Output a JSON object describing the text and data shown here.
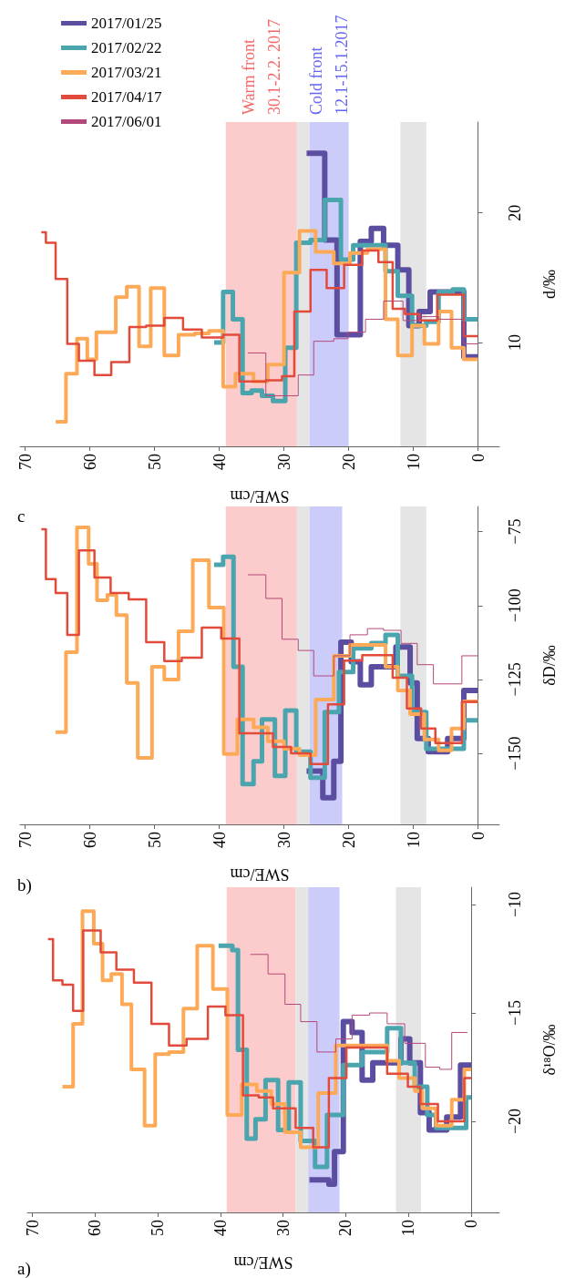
{
  "chart_data": [
    {
      "type": "line",
      "title": "a)",
      "xlabel": "SWE/cm",
      "ylabel": "δ¹⁸O/‰",
      "xlim": [
        70.8,
        -4.5
      ],
      "xticks": [
        70,
        60,
        50,
        40,
        30,
        20,
        10,
        0
      ],
      "ylim": [
        -24.2,
        -9.2
      ],
      "yticks": [
        -20,
        -15,
        -10
      ],
      "bands": [
        {
          "axis": "x",
          "from": 39,
          "to": 28,
          "color": "#fccccc"
        },
        {
          "axis": "x",
          "from": 28,
          "to": 26,
          "color": "#e5e5e5"
        },
        {
          "axis": "x",
          "from": 26,
          "to": 21,
          "color": "#ccccfb"
        },
        {
          "axis": "x",
          "from": 12,
          "to": 8,
          "color": "#e5e5e5"
        }
      ],
      "series": [
        {
          "color": "#5b4ea0",
          "values": [
            -22.7,
            -22.7,
            -22.9,
            -22.9,
            -21.4,
            -21.4,
            -15.4,
            -15.4,
            -15.9,
            -15.9,
            -18.1,
            -18.1,
            -17.3,
            -17.3,
            -16.2,
            -16.2,
            -17.3,
            -17.3,
            -19.6,
            -19.6,
            -20.4,
            -20.4,
            -19.8,
            -19.8,
            -17.4,
            -17.4
          ],
          "x": [
            25.8,
            22.7,
            22.7,
            21.8,
            21.8,
            20.4,
            20.4,
            19.0,
            19.0,
            17.4,
            17.4,
            15.7,
            15.7,
            11.2,
            11.2,
            9.8,
            9.8,
            8.1,
            8.1,
            6.7,
            6.7,
            3.9,
            3.9,
            1.7,
            1.7,
            0
          ]
        },
        {
          "color": "#4aa5ae",
          "values": [
            -11.9,
            -11.9,
            -12.1,
            -12.1,
            -16.7,
            -16.7,
            -20.8,
            -20.8,
            -19.9,
            -19.9,
            -18.1,
            -18.1,
            -20.4,
            -20.4,
            -18.2,
            -18.2,
            -20.9,
            -20.9,
            -22.1,
            -22.1,
            -19.7,
            -19.7,
            -17.4,
            -17.4,
            -16.8,
            -16.8,
            -15.7,
            -15.7,
            -17.3,
            -17.3,
            -18.4,
            -18.4,
            -19.7,
            -19.7,
            -20.3,
            -20.3,
            -18.9,
            -18.9
          ],
          "x": [
            40.3,
            38.1,
            38.1,
            37.2,
            37.2,
            35.8,
            35.8,
            34.4,
            34.4,
            32.8,
            32.8,
            30.8,
            30.8,
            29.1,
            29.1,
            27.2,
            27.2,
            24.9,
            24.9,
            23.0,
            23.0,
            20.4,
            20.4,
            17.4,
            17.4,
            13.4,
            13.4,
            11.2,
            11.2,
            9.0,
            9.0,
            7.0,
            7.0,
            5.6,
            5.6,
            0.8,
            0.8,
            0
          ]
        },
        {
          "color": "#fdaa58",
          "values": [
            -18.4,
            -18.4,
            -15.5,
            -15.5,
            -10.3,
            -10.3,
            -11.8,
            -11.8,
            -13.5,
            -13.5,
            -13.2,
            -13.2,
            -14.6,
            -14.6,
            -17.6,
            -17.6,
            -20.2,
            -20.2,
            -16.9,
            -16.9,
            -16.8,
            -16.8,
            -14.8,
            -14.8,
            -11.9,
            -11.9,
            -13.9,
            -13.9,
            -19.7,
            -19.7,
            -18.3,
            -18.3,
            -18.6,
            -18.6,
            -19.2,
            -19.2,
            -20.5,
            -20.5,
            -21.2,
            -21.2,
            -18.7,
            -18.7,
            -16.5,
            -16.5,
            -17.2,
            -17.2,
            -18.0,
            -18.0,
            -18.6,
            -18.6,
            -19.4,
            -19.4,
            -20.2,
            -20.2,
            -19.0,
            -19.0,
            -17.6,
            -17.6
          ],
          "x": [
            65.2,
            63.5,
            63.5,
            62.0,
            62.0,
            60.2,
            60.2,
            58.8,
            58.8,
            57.4,
            57.4,
            55.7,
            55.7,
            54.2,
            54.2,
            52.1,
            52.1,
            50.4,
            50.4,
            48.2,
            48.2,
            45.9,
            45.9,
            43.7,
            43.7,
            41.2,
            41.2,
            38.9,
            38.9,
            36.6,
            36.6,
            34.2,
            34.2,
            31.9,
            31.9,
            29.7,
            29.7,
            27.2,
            27.2,
            24.4,
            24.4,
            21.6,
            21.6,
            13.4,
            13.4,
            11.5,
            11.5,
            9.0,
            9.0,
            7.8,
            7.8,
            5.6,
            5.6,
            3.1,
            3.1,
            1.1,
            1.1,
            0
          ]
        },
        {
          "color": "#e24a3b",
          "values": [
            -11.6,
            -11.6,
            -13.5,
            -13.5,
            -13.7,
            -13.7,
            -14.9,
            -14.9,
            -11.2,
            -11.2,
            -12.2,
            -12.2,
            -13.0,
            -13.0,
            -13.6,
            -13.6,
            -15.5,
            -15.5,
            -16.5,
            -16.5,
            -16.2,
            -16.2,
            -14.7,
            -14.7,
            -15.1,
            -15.1,
            -18.8,
            -18.8,
            -18.9,
            -18.9,
            -19.4,
            -19.4,
            -20.3,
            -20.3,
            -21.2,
            -21.2,
            -18.0,
            -18.0,
            -16.6,
            -16.6,
            -17.8,
            -17.8,
            -18.4,
            -18.4,
            -19.2,
            -19.2,
            -20.0,
            -20.0,
            -18.0,
            -18.0
          ],
          "x": [
            67.5,
            66.7,
            66.7,
            65.2,
            65.2,
            63.5,
            63.5,
            61.9,
            61.9,
            59.1,
            59.1,
            56.6,
            56.6,
            53.8,
            53.8,
            51.0,
            51.0,
            48.2,
            48.2,
            45.4,
            45.4,
            42.0,
            42.0,
            39.2,
            39.2,
            36.4,
            36.4,
            33.9,
            33.9,
            31.6,
            31.6,
            28.0,
            28.0,
            25.2,
            25.2,
            22.7,
            22.7,
            19.9,
            19.9,
            13.4,
            13.4,
            10.1,
            10.1,
            8.1,
            8.1,
            5.3,
            5.3,
            1.1,
            1.1,
            0
          ]
        },
        {
          "color": "#b5487a",
          "values": [
            -12.3,
            -12.3,
            -13.2,
            -13.2,
            -14.6,
            -14.6,
            -15.4,
            -15.4,
            -16.8,
            -16.8,
            -16.2,
            -16.2,
            -15.1,
            -15.1,
            -15.0,
            -15.0,
            -15.5,
            -15.5,
            -16.4,
            -16.4,
            -17.5,
            -17.5,
            -17.6,
            -17.6,
            -15.9,
            -15.9
          ],
          "x": [
            35.2,
            32.4,
            32.4,
            29.7,
            29.7,
            27.2,
            27.2,
            24.6,
            24.6,
            21.6,
            21.6,
            19.0,
            19.0,
            16.2,
            16.2,
            13.4,
            13.4,
            10.6,
            10.6,
            7.3,
            7.3,
            5.0,
            5.0,
            3.1,
            3.1,
            0.6
          ]
        }
      ]
    },
    {
      "type": "line",
      "title": "b)",
      "xlabel": "SWE/cm",
      "ylabel": "δD/‰",
      "xlim": [
        70.8,
        -3.3
      ],
      "xticks": [
        70,
        60,
        50,
        40,
        30,
        20,
        10,
        0
      ],
      "ylim": [
        -174,
        -66.5
      ],
      "yticks": [
        -150,
        -125,
        -100,
        -75
      ],
      "bands": [
        {
          "axis": "x",
          "from": 39,
          "to": 28,
          "color": "#fccccc"
        },
        {
          "axis": "x",
          "from": 28,
          "to": 26,
          "color": "#e5e5e5"
        },
        {
          "axis": "x",
          "from": 26,
          "to": 21,
          "color": "#ccccfb"
        },
        {
          "axis": "x",
          "from": 12,
          "to": 8,
          "color": "#e5e5e5"
        }
      ],
      "series": [
        {
          "color": "#5b4ea0",
          "values": [
            -156.0,
            -156.0,
            -165.0,
            -165.0,
            -152.7,
            -152.7,
            -112.4,
            -112.4,
            -119.0,
            -119.0,
            -126.8,
            -126.8,
            -120.7,
            -120.7,
            -114.0,
            -114.0,
            -126.2,
            -126.2,
            -145.0,
            -145.0,
            -149.4,
            -149.4,
            -145.0,
            -145.0,
            -128.7,
            -128.7
          ],
          "x": [
            26.5,
            24.0,
            24.0,
            22.3,
            22.3,
            21.2,
            21.2,
            19.6,
            19.6,
            18.2,
            18.2,
            16.5,
            16.5,
            12.7,
            12.7,
            10.5,
            10.5,
            9.4,
            9.4,
            7.7,
            7.7,
            4.7,
            4.7,
            2.2,
            2.2,
            0
          ]
        },
        {
          "color": "#4aa5ae",
          "values": [
            -86.2,
            -86.2,
            -83.5,
            -83.5,
            -120.7,
            -120.7,
            -160.4,
            -160.4,
            -152.7,
            -152.7,
            -138.5,
            -138.5,
            -157.6,
            -157.6,
            -135.5,
            -135.5,
            -149.4,
            -149.4,
            -158.2,
            -158.2,
            -136.0,
            -136.0,
            -122.5,
            -122.5,
            -114.5,
            -114.5,
            -112.7,
            -112.7,
            -109.9,
            -109.9,
            -123.8,
            -123.8,
            -136.0,
            -136.0,
            -148.4,
            -148.4,
            -138.8,
            -138.8
          ],
          "x": [
            40.8,
            39.4,
            39.4,
            37.8,
            37.8,
            36.4,
            36.4,
            34.7,
            34.7,
            33.4,
            33.4,
            31.4,
            31.4,
            29.8,
            29.8,
            28.1,
            28.1,
            25.9,
            25.9,
            23.7,
            23.7,
            21.5,
            21.5,
            19.3,
            19.3,
            16.5,
            16.5,
            14.3,
            14.3,
            12.4,
            12.4,
            10.2,
            10.2,
            8.0,
            8.0,
            2.2,
            2.2,
            0
          ]
        },
        {
          "color": "#fdaa58",
          "values": [
            -142.8,
            -142.8,
            -115.8,
            -115.8,
            -73.6,
            -73.6,
            -85.9,
            -85.9,
            -98.2,
            -98.2,
            -96.4,
            -96.4,
            -103.2,
            -103.2,
            -126.2,
            -126.2,
            -151.5,
            -151.5,
            -120.7,
            -120.7,
            -125.0,
            -125.0,
            -108.7,
            -108.7,
            -84.7,
            -84.7,
            -100.7,
            -100.7,
            -150.2,
            -150.2,
            -138.5,
            -138.5,
            -141.2,
            -141.2,
            -145.9,
            -145.9,
            -148.4,
            -148.4,
            -150.6,
            -150.6,
            -131.8,
            -131.8,
            -117.0,
            -117.0,
            -113.3,
            -113.3,
            -120.7,
            -120.7,
            -128.7,
            -128.7,
            -136.7,
            -136.7,
            -145.3,
            -145.3,
            -149.0,
            -149.0,
            -141.6,
            -141.6,
            -132.4,
            -132.4
          ],
          "x": [
            65.3,
            63.7,
            63.7,
            62.0,
            62.0,
            60.2,
            60.2,
            58.9,
            58.9,
            57.3,
            57.3,
            55.9,
            55.9,
            54.3,
            54.3,
            52.6,
            52.6,
            50.4,
            50.4,
            48.5,
            48.5,
            46.3,
            46.3,
            44.1,
            44.1,
            41.6,
            41.6,
            39.3,
            39.3,
            37.2,
            37.2,
            34.7,
            34.7,
            32.5,
            32.5,
            30.0,
            30.0,
            27.6,
            27.6,
            25.1,
            25.1,
            22.3,
            22.3,
            19.8,
            19.8,
            14.3,
            14.3,
            12.4,
            12.4,
            10.5,
            10.5,
            8.3,
            8.3,
            6.1,
            6.1,
            4.1,
            4.1,
            2.2,
            2.2,
            0
          ]
        },
        {
          "color": "#e24a3b",
          "values": [
            -74.2,
            -74.2,
            -91.1,
            -91.1,
            -95.8,
            -95.8,
            -109.9,
            -109.9,
            -81.4,
            -81.4,
            -90.5,
            -90.5,
            -95.8,
            -95.8,
            -97.9,
            -97.9,
            -112.4,
            -112.4,
            -118.8,
            -118.8,
            -117.6,
            -117.6,
            -107.5,
            -107.5,
            -111.2,
            -111.2,
            -143.2,
            -143.2,
            -147.8,
            -147.8,
            -150.0,
            -150.0,
            -153.6,
            -153.6,
            -133.4,
            -133.4,
            -118.6,
            -118.6,
            -116.8,
            -116.8,
            -124.4,
            -124.4,
            -134.8,
            -134.8,
            -141.6,
            -141.6,
            -146.5,
            -146.5,
            -132.6,
            -132.6
          ],
          "x": [
            67.5,
            66.8,
            66.8,
            65.3,
            65.3,
            63.5,
            63.5,
            61.7,
            61.7,
            59.3,
            59.3,
            56.8,
            56.8,
            54.0,
            54.0,
            51.3,
            51.3,
            48.5,
            48.5,
            45.8,
            45.8,
            42.7,
            42.7,
            39.7,
            39.7,
            36.9,
            36.9,
            31.7,
            31.7,
            28.9,
            28.9,
            25.9,
            25.9,
            23.2,
            23.2,
            20.7,
            20.7,
            17.9,
            17.9,
            13.2,
            13.2,
            11.0,
            11.0,
            8.8,
            8.8,
            6.6,
            6.6,
            2.5,
            2.5,
            0
          ]
        },
        {
          "color": "#b5487a",
          "values": [
            -89.6,
            -89.6,
            -97.6,
            -97.6,
            -111.4,
            -111.4,
            -115.2,
            -115.2,
            -123.8,
            -123.8,
            -117.0,
            -117.0,
            -109.9,
            -109.9,
            -107.8,
            -107.8,
            -108.4,
            -108.4,
            -112.8,
            -112.8,
            -120.0,
            -120.0,
            -126.5,
            -126.5,
            -117.0,
            -117.0
          ],
          "x": [
            35.6,
            32.8,
            32.8,
            30.3,
            30.3,
            27.8,
            27.8,
            25.4,
            25.4,
            22.3,
            22.3,
            19.8,
            19.8,
            17.1,
            17.1,
            14.6,
            14.6,
            11.9,
            11.9,
            9.4,
            9.4,
            6.9,
            6.9,
            2.5,
            2.5,
            0
          ]
        }
      ]
    },
    {
      "type": "line",
      "title": "c",
      "xlabel": "SWE/cm",
      "ylabel": "d/‰",
      "xlim": [
        70.8,
        -3.3
      ],
      "xticks": [
        70,
        60,
        50,
        40,
        30,
        20,
        10,
        0
      ],
      "ylim": [
        2,
        27
      ],
      "yticks": [
        10,
        20
      ],
      "legend": "top left",
      "bands": [
        {
          "axis": "x",
          "from": 39,
          "to": 28,
          "color": "#fccccc",
          "label": "Warm front\n30.1-2.2. 2017"
        },
        {
          "axis": "x",
          "from": 28,
          "to": 26,
          "color": "#e5e5e5"
        },
        {
          "axis": "x",
          "from": 26,
          "to": 20,
          "color": "#ccccfb",
          "label": "Cold front\n12.1-15.1.2017"
        },
        {
          "axis": "x",
          "from": 12,
          "to": 8,
          "color": "#e5e5e5"
        }
      ],
      "series": [
        {
          "name": "2017/01/25",
          "color": "#5b4ea0",
          "values": [
            24.6,
            24.6,
            17.9,
            17.9,
            10.6,
            10.6,
            17.8,
            17.8,
            18.8,
            18.8,
            17.5,
            17.5,
            15.6,
            15.6,
            11.3,
            11.3,
            12.4,
            12.4,
            13.9,
            13.9,
            8.9,
            8.9
          ],
          "x": [
            26.5,
            23.7,
            23.7,
            21.8,
            21.8,
            18.2,
            18.2,
            16.5,
            16.5,
            14.6,
            14.6,
            12.4,
            12.4,
            10.7,
            10.7,
            9.1,
            9.1,
            7.4,
            7.4,
            2.2,
            2.2,
            0
          ]
        },
        {
          "name": "2017/02/22",
          "color": "#4aa5ae",
          "values": [
            10.0,
            10.0,
            13.9,
            13.9,
            11.8,
            11.8,
            6.1,
            6.1,
            6.3,
            6.3,
            5.9,
            5.9,
            5.5,
            5.5,
            9.6,
            9.6,
            17.7,
            17.7,
            17.9,
            17.9,
            21.0,
            21.0,
            16.4,
            16.4,
            17.5,
            17.5,
            15.5,
            15.5,
            13.6,
            13.6,
            11.3,
            11.3,
            11.6,
            11.6,
            13.9,
            13.9,
            14.1,
            14.1,
            11.8,
            11.8
          ],
          "x": [
            40.8,
            39.4,
            39.4,
            37.9,
            37.9,
            36.4,
            36.4,
            35.0,
            35.0,
            33.4,
            33.4,
            31.7,
            31.7,
            29.8,
            29.8,
            28.1,
            28.1,
            25.9,
            25.9,
            23.7,
            23.7,
            21.2,
            21.2,
            19.3,
            19.3,
            14.3,
            14.3,
            12.4,
            12.4,
            10.2,
            10.2,
            8.0,
            8.0,
            6.1,
            6.1,
            3.9,
            3.9,
            2.2,
            2.2,
            0
          ]
        },
        {
          "name": "2017/03/21",
          "color": "#fdaa58",
          "values": [
            3.9,
            3.9,
            7.6,
            7.6,
            10.3,
            10.3,
            8.7,
            8.7,
            10.8,
            10.8,
            13.5,
            13.5,
            14.3,
            14.3,
            9.7,
            9.7,
            14.2,
            14.2,
            9.0,
            9.0,
            10.6,
            10.6,
            10.7,
            10.7,
            10.9,
            10.9,
            6.6,
            6.6,
            7.6,
            7.6,
            7.0,
            7.0,
            8.3,
            8.3,
            15.4,
            15.4,
            18.6,
            18.6,
            17.0,
            17.0,
            16.1,
            16.1,
            16.9,
            16.9,
            17.2,
            17.2,
            11.8,
            11.8,
            9.0,
            9.0,
            11.3,
            11.3,
            9.9,
            9.9,
            12.4,
            12.4,
            9.6,
            9.6,
            8.7,
            8.7
          ],
          "x": [
            65.3,
            63.7,
            63.7,
            62.0,
            62.0,
            60.4,
            60.4,
            59.0,
            59.0,
            56.0,
            56.0,
            54.3,
            54.3,
            52.4,
            52.4,
            50.6,
            50.6,
            48.5,
            48.5,
            46.3,
            46.3,
            43.8,
            43.8,
            41.6,
            41.6,
            39.4,
            39.4,
            37.5,
            37.5,
            34.7,
            34.7,
            32.5,
            32.5,
            30.0,
            30.0,
            27.6,
            27.6,
            25.1,
            25.1,
            22.3,
            22.3,
            19.8,
            19.8,
            17.1,
            17.1,
            14.3,
            14.3,
            12.4,
            12.4,
            10.2,
            10.2,
            8.3,
            8.3,
            6.1,
            6.1,
            4.1,
            4.1,
            2.2,
            2.2,
            0
          ]
        },
        {
          "name": "2017/04/17",
          "color": "#e24a3b",
          "values": [
            18.5,
            18.5,
            17.7,
            17.7,
            14.9,
            14.9,
            9.9,
            9.9,
            8.6,
            8.6,
            7.5,
            7.5,
            8.5,
            8.5,
            11.2,
            11.2,
            11.3,
            11.3,
            11.9,
            11.9,
            11.0,
            11.0,
            10.4,
            10.4,
            10.6,
            10.6,
            7.0,
            7.0,
            7.1,
            7.1,
            7.4,
            7.4,
            12.4,
            12.4,
            15.6,
            15.6,
            14.2,
            14.2,
            16.0,
            16.0,
            17.1,
            17.1,
            16.2,
            16.2,
            12.6,
            12.6,
            12.2,
            12.2,
            11.7,
            11.7,
            13.7,
            13.7,
            10.5,
            10.5
          ],
          "x": [
            67.5,
            66.8,
            66.8,
            65.3,
            65.3,
            63.5,
            63.5,
            61.7,
            61.7,
            59.3,
            59.3,
            56.7,
            56.7,
            53.9,
            53.9,
            51.3,
            51.3,
            48.5,
            48.5,
            45.6,
            45.6,
            42.7,
            42.7,
            39.4,
            39.4,
            36.9,
            36.9,
            32.8,
            32.8,
            30.3,
            30.3,
            28.4,
            28.4,
            25.9,
            25.9,
            23.4,
            23.4,
            20.7,
            20.7,
            17.9,
            17.9,
            15.4,
            15.4,
            13.2,
            13.2,
            11.3,
            11.3,
            9.1,
            9.1,
            6.3,
            6.3,
            2.2,
            2.2,
            0
          ]
        },
        {
          "name": "2017/06/01",
          "color": "#b5487a",
          "values": [
            9.2,
            9.2,
            5.9,
            5.9,
            7.5,
            7.5,
            10.1,
            10.1,
            10.3,
            10.3,
            10.8,
            10.8,
            11.8,
            11.8,
            13.2,
            13.2,
            11.7,
            11.7,
            12.0,
            12.0,
            11.8,
            11.8,
            9.9,
            9.9
          ],
          "x": [
            35.6,
            32.8,
            32.8,
            27.8,
            27.8,
            25.4,
            25.4,
            22.3,
            22.3,
            20.1,
            20.1,
            17.4,
            17.4,
            14.6,
            14.6,
            11.6,
            11.6,
            9.1,
            9.1,
            6.1,
            6.1,
            2.2,
            2.2,
            0
          ]
        }
      ]
    }
  ]
}
